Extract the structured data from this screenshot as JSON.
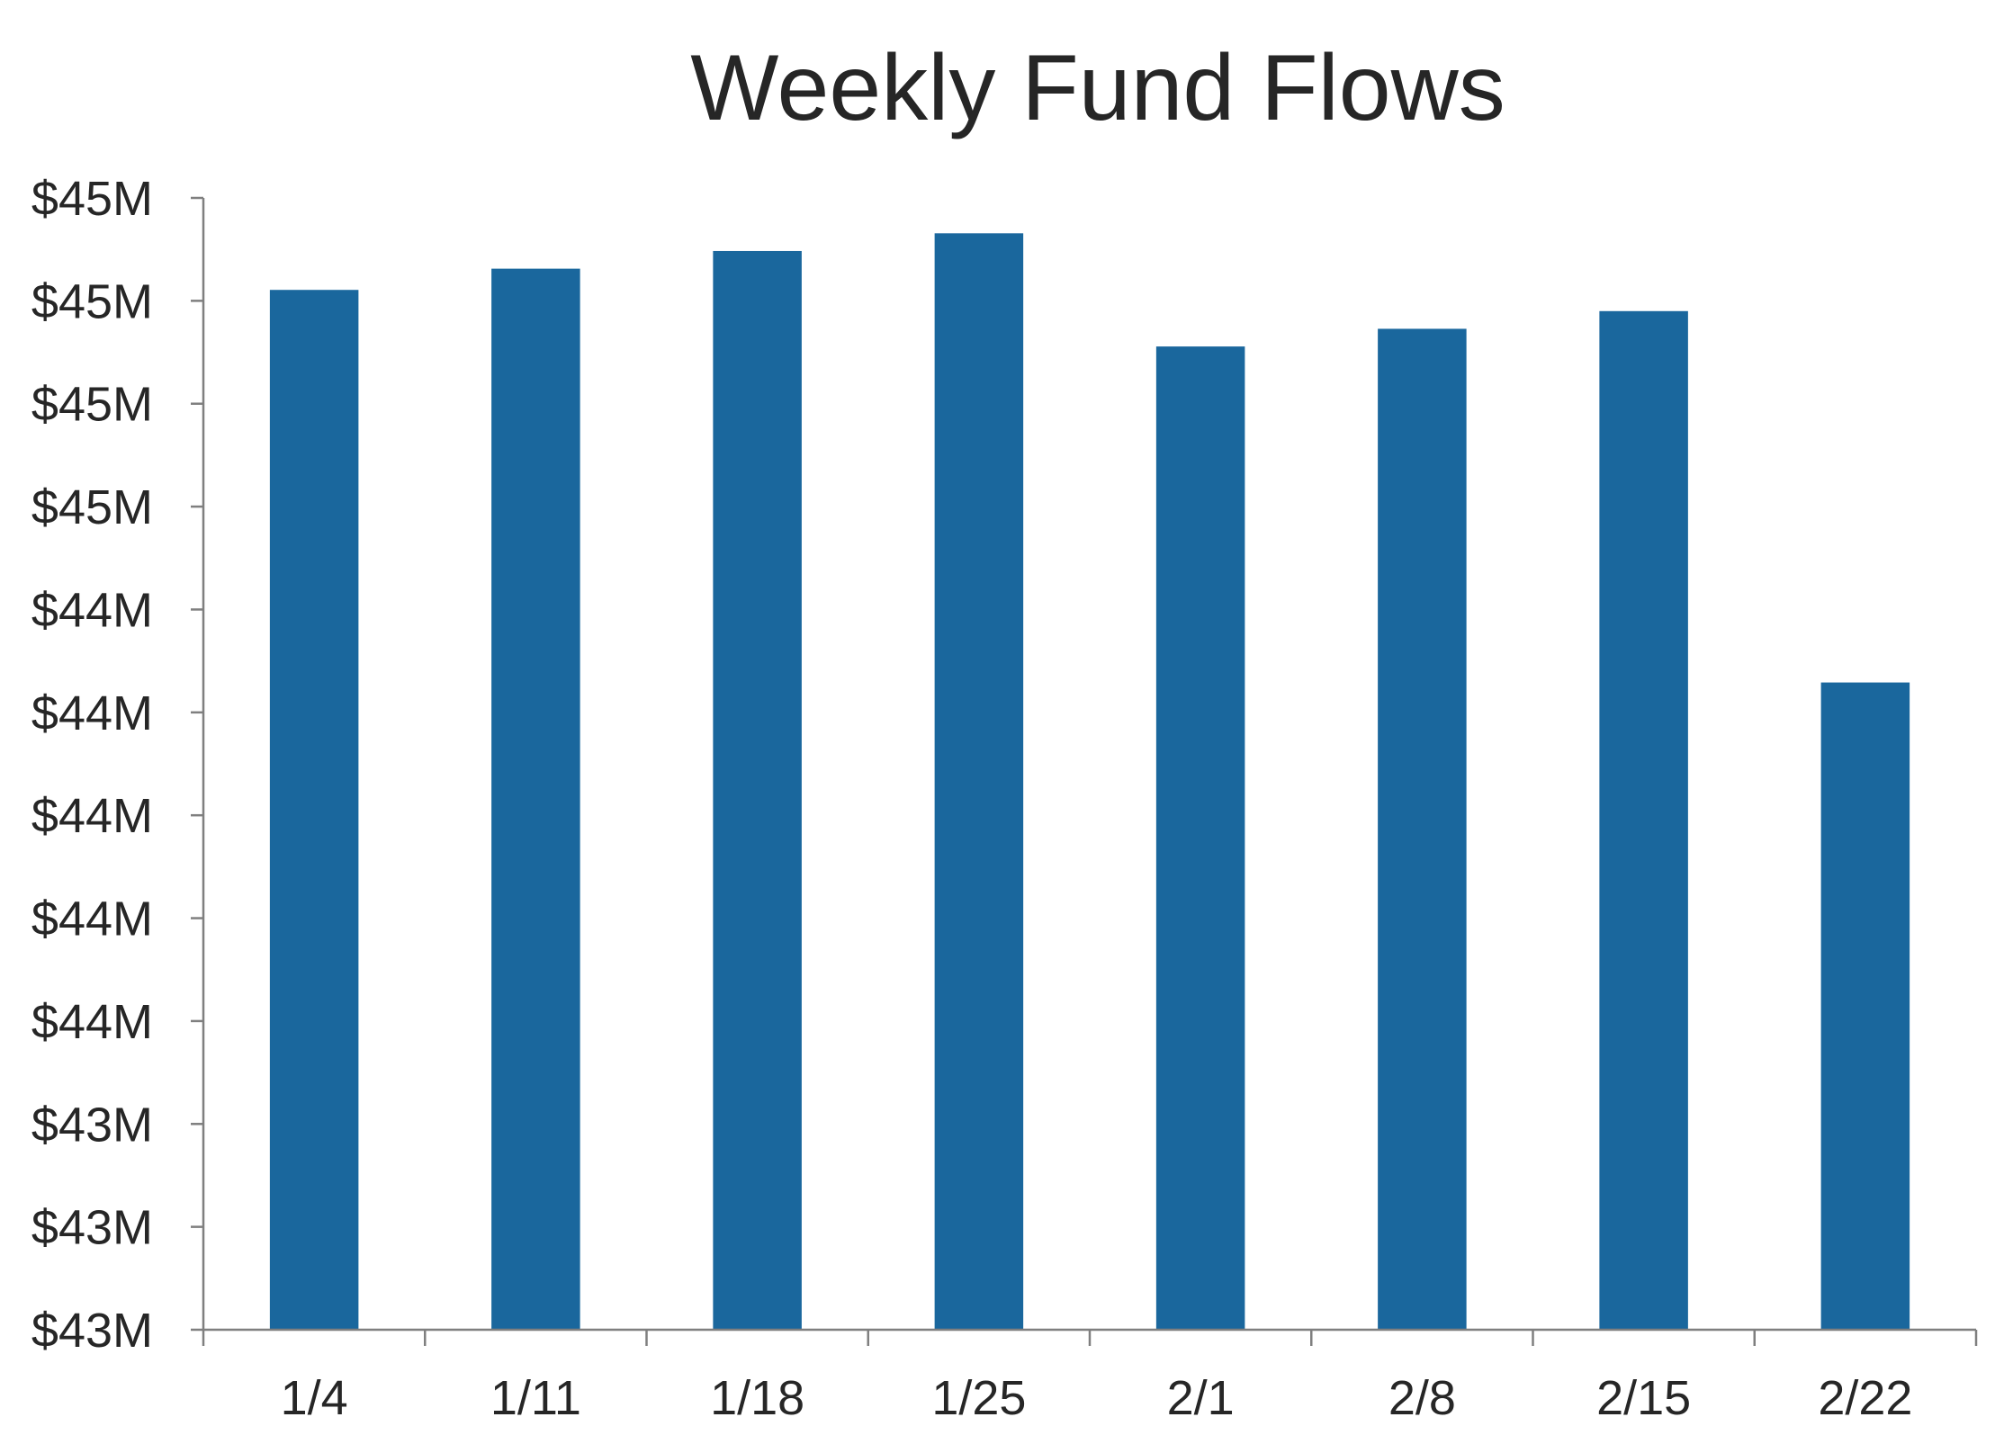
{
  "chart_data": {
    "type": "bar",
    "title": "Weekly Fund Flows",
    "xlabel": "",
    "ylabel": "",
    "categories": [
      "1/4",
      "1/11",
      "1/18",
      "1/25",
      "2/1",
      "2/8",
      "2/15",
      "2/22"
    ],
    "values": [
      44.87,
      44.9,
      44.925,
      44.95,
      44.79,
      44.815,
      44.84,
      44.315
    ],
    "ylim": [
      43.4,
      45.0
    ],
    "yticks": {
      "values": [
        43.4,
        43.5,
        43.6,
        43.7,
        43.8,
        43.9,
        44.0,
        44.1,
        44.2,
        44.3,
        44.4,
        44.5,
        44.6,
        44.7,
        44.8,
        44.9,
        45.0
      ],
      "labels": [
        "",
        "",
        "",
        "",
        "",
        "",
        "",
        "",
        "",
        "",
        "",
        "",
        "",
        "",
        "",
        "",
        ""
      ]
    },
    "ytick_labels": [
      "$43M",
      "$43M",
      "$43M",
      "$44M",
      "$44M",
      "$44M",
      "$44M",
      "$44M",
      "$45M",
      "$45M",
      "$45M",
      "$45M"
    ],
    "bar_color": "#1a679d",
    "axis_color": "#7f7f7f",
    "text_color": "#262626",
    "grid": false,
    "legend": "none"
  }
}
